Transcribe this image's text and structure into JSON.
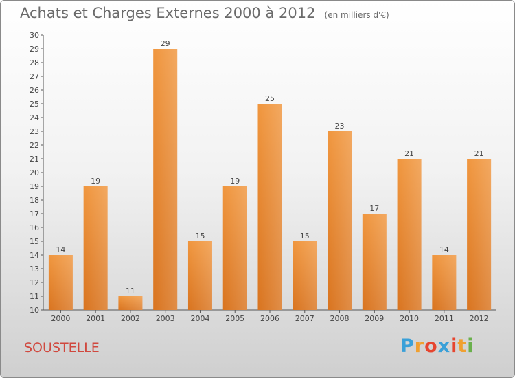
{
  "chart_data": {
    "type": "bar",
    "title": "Achats et Charges Externes 2000 à 2012",
    "subtitle": "(en milliers d'€)",
    "categories": [
      "2000",
      "2001",
      "2002",
      "2003",
      "2004",
      "2005",
      "2006",
      "2007",
      "2008",
      "2009",
      "2010",
      "2011",
      "2012"
    ],
    "values": [
      14,
      19,
      11,
      29,
      15,
      19,
      25,
      15,
      23,
      17,
      21,
      14,
      21
    ],
    "ylim": [
      10,
      30
    ],
    "yticks": [
      "10",
      "11",
      "12",
      "13",
      "14",
      "15",
      "16",
      "17",
      "18",
      "19",
      "20",
      "21",
      "22",
      "23",
      "24",
      "25",
      "26",
      "27",
      "28",
      "29",
      "30"
    ],
    "grid": false,
    "bar_color": "#f0963e",
    "bar_color_dark": "#d9741f"
  },
  "commune": "SOUSTELLE",
  "logo": {
    "letters": [
      "P",
      "r",
      "o",
      "x",
      "i",
      "t",
      "i"
    ],
    "colors": [
      "#3aa0d8",
      "#f0a030",
      "#e6452f",
      "#3aa0d8",
      "#e6452f",
      "#f0a030",
      "#6ab04c"
    ]
  }
}
